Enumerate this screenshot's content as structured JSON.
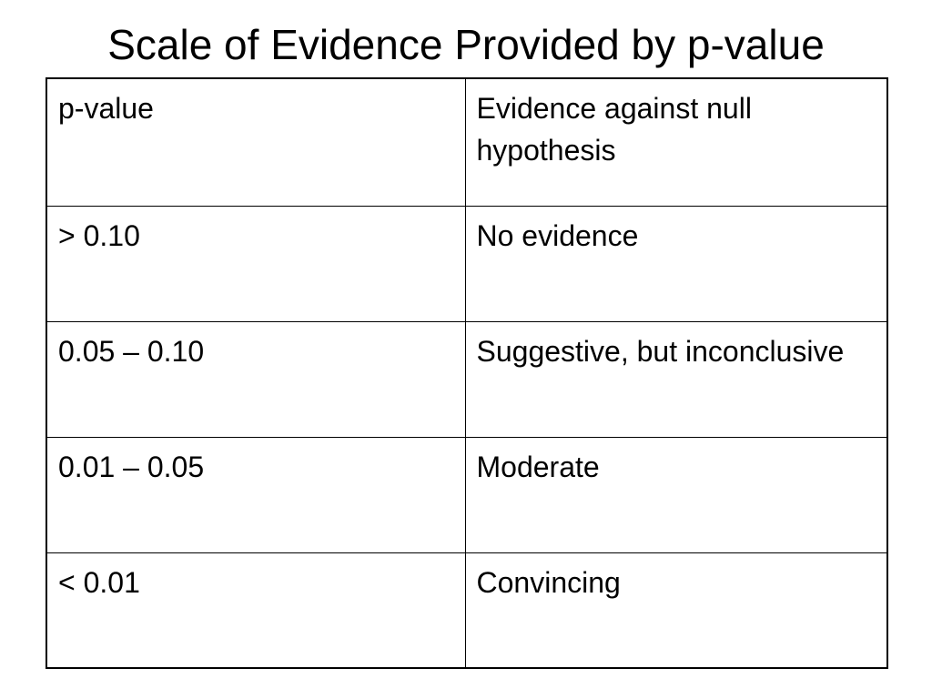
{
  "slide": {
    "title": "Scale of Evidence Provided by p-value"
  },
  "table": {
    "headers": [
      "p-value",
      "Evidence against null hypothesis"
    ],
    "rows": [
      [
        "> 0.10",
        "No evidence"
      ],
      [
        "0.05 – 0.10",
        "Suggestive, but inconclusive"
      ],
      [
        "0.01 – 0.05",
        "Moderate"
      ],
      [
        "< 0.01",
        "Convincing"
      ]
    ]
  }
}
